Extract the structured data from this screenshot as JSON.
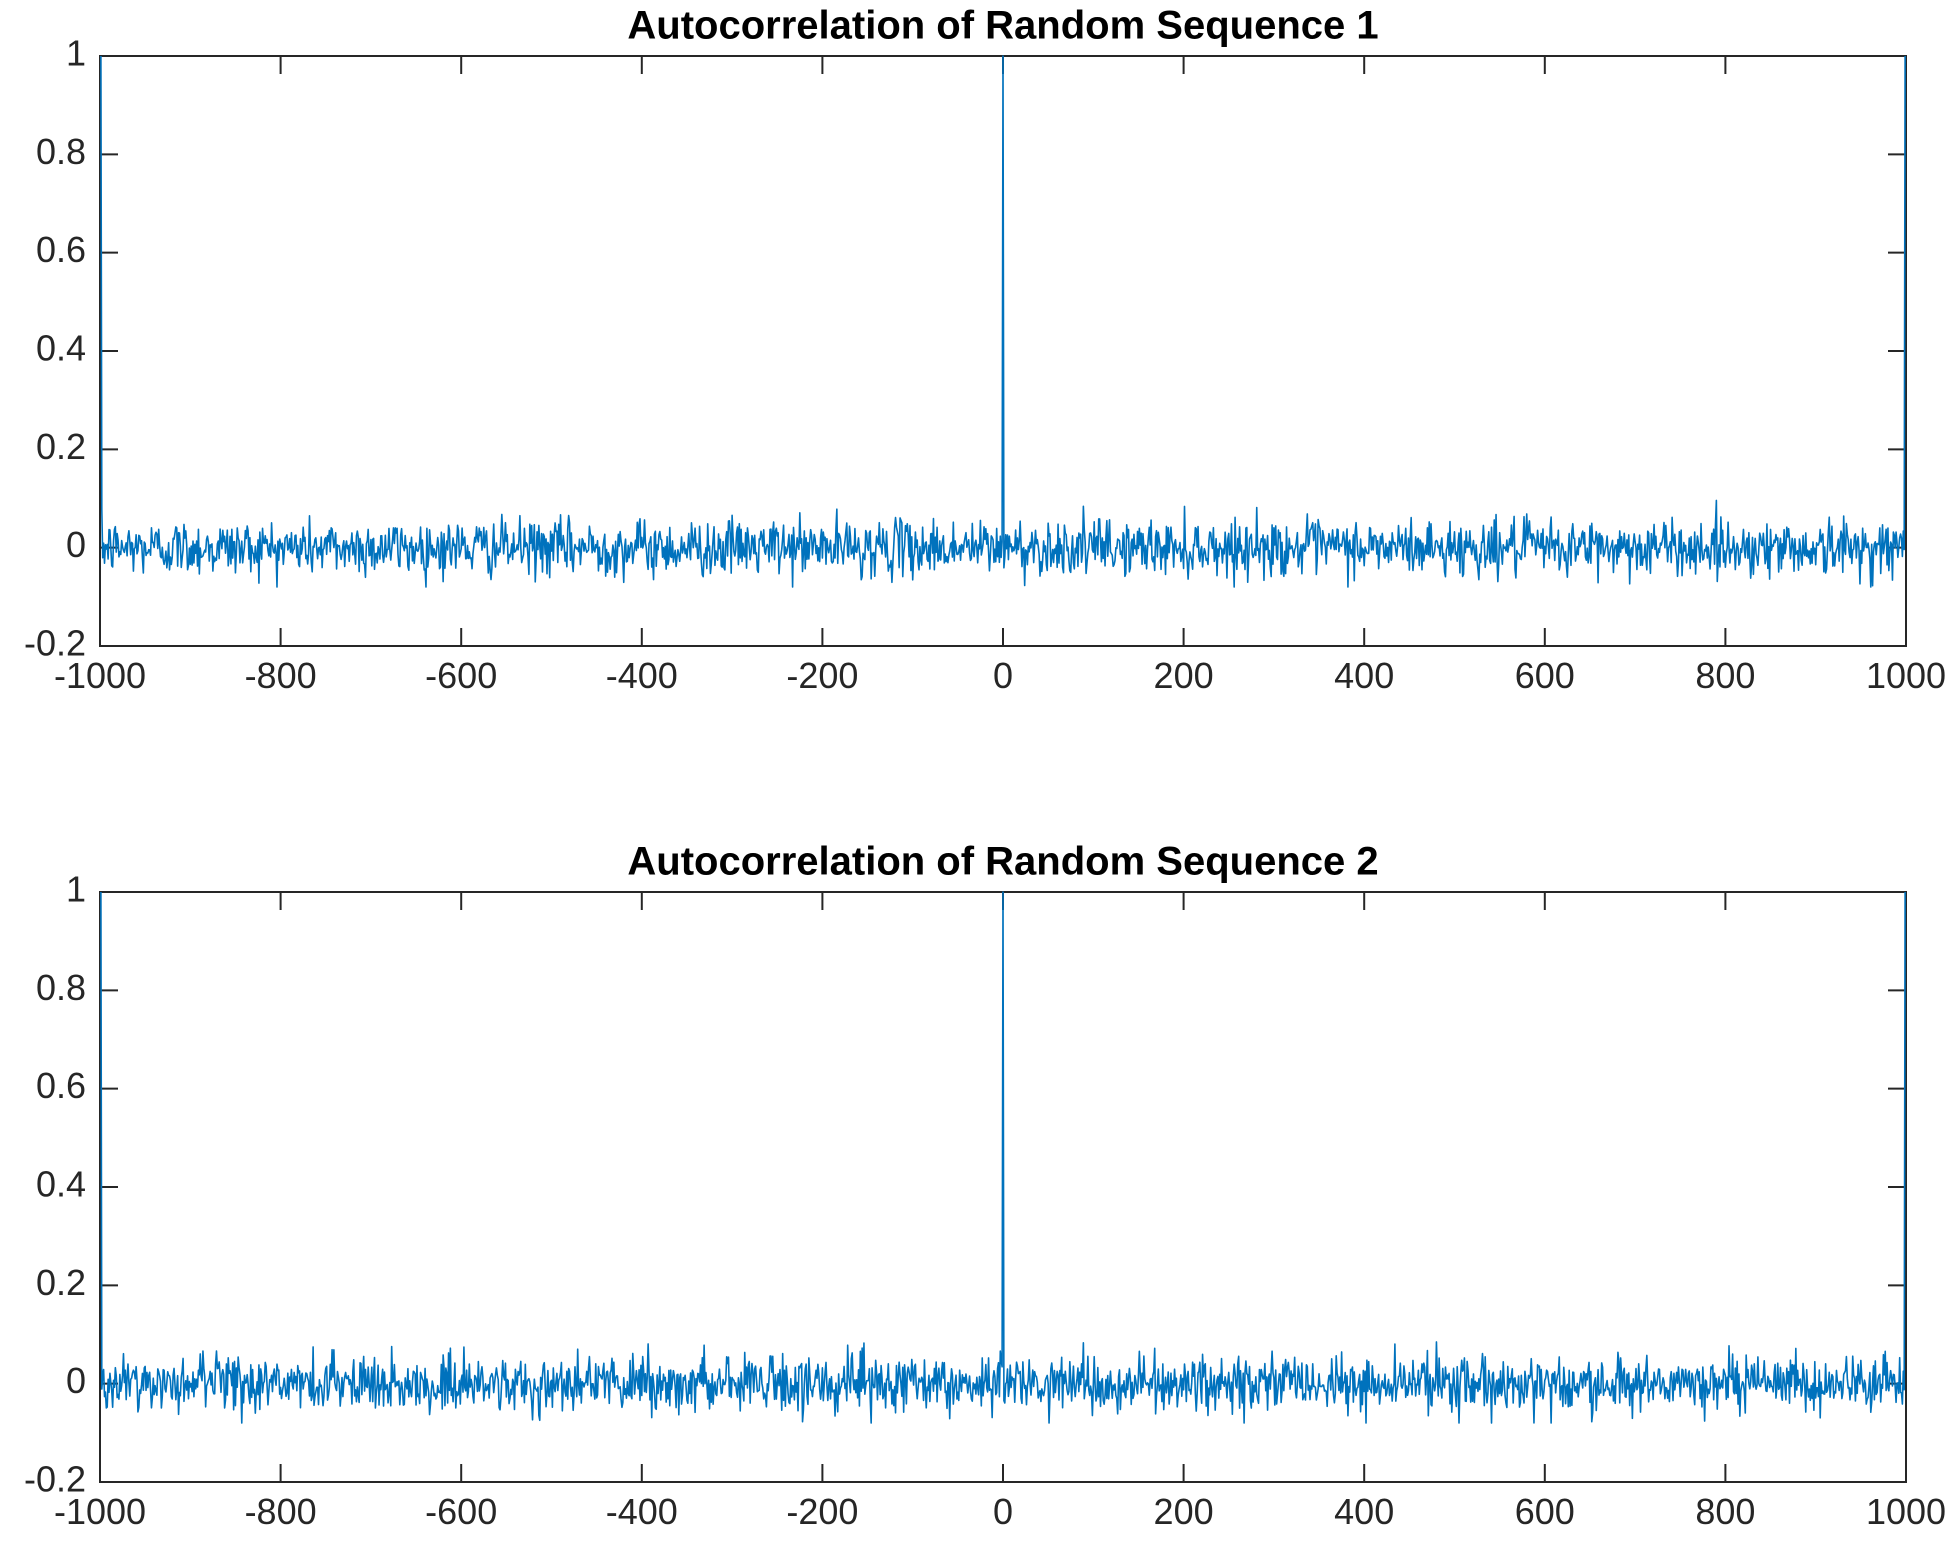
{
  "chart_data": [
    {
      "type": "line",
      "title": "Autocorrelation of Random Sequence 1",
      "xlabel": "",
      "ylabel": "",
      "xlim": [
        -1000,
        1000
      ],
      "ylim": [
        -0.2,
        1
      ],
      "xticks": [
        -1000,
        -800,
        -600,
        -400,
        -200,
        0,
        200,
        400,
        600,
        800,
        1000
      ],
      "yticks": [
        -0.2,
        0,
        0.2,
        0.4,
        0.6,
        0.8,
        1
      ],
      "xtick_labels": [
        "-1000",
        "-800",
        "-600",
        "-400",
        "-200",
        "0",
        "200",
        "400",
        "600",
        "800",
        "1000"
      ],
      "ytick_labels": [
        "-0.2",
        "0",
        "0.2",
        "0.4",
        "0.6",
        "0.8",
        "1"
      ],
      "grid": false,
      "series": [
        {
          "color": "#0072BD",
          "peaks": [
            [
              -999,
              1
            ],
            [
              0,
              1
            ],
            [
              999,
              1
            ]
          ],
          "noise_envelope": [
            -0.08,
            0.1
          ],
          "noise_mean": 0.0,
          "x_range": [
            -999,
            999
          ]
        }
      ]
    },
    {
      "type": "line",
      "title": "Autocorrelation of Random Sequence 2",
      "xlabel": "",
      "ylabel": "",
      "xlim": [
        -1000,
        1000
      ],
      "ylim": [
        -0.2,
        1
      ],
      "xticks": [
        -1000,
        -800,
        -600,
        -400,
        -200,
        0,
        200,
        400,
        600,
        800,
        1000
      ],
      "yticks": [
        -0.2,
        0,
        0.2,
        0.4,
        0.6,
        0.8,
        1
      ],
      "xtick_labels": [
        "-1000",
        "-800",
        "-600",
        "-400",
        "-200",
        "0",
        "200",
        "400",
        "600",
        "800",
        "1000"
      ],
      "ytick_labels": [
        "-0.2",
        "0",
        "0.2",
        "0.4",
        "0.6",
        "0.8",
        "1"
      ],
      "grid": false,
      "series": [
        {
          "color": "#0072BD",
          "peaks": [
            [
              -999,
              1
            ],
            [
              0,
              1
            ],
            [
              999,
              1
            ]
          ],
          "noise_envelope": [
            -0.08,
            0.09
          ],
          "noise_mean": 0.0,
          "x_range": [
            -999,
            999
          ]
        }
      ]
    }
  ]
}
